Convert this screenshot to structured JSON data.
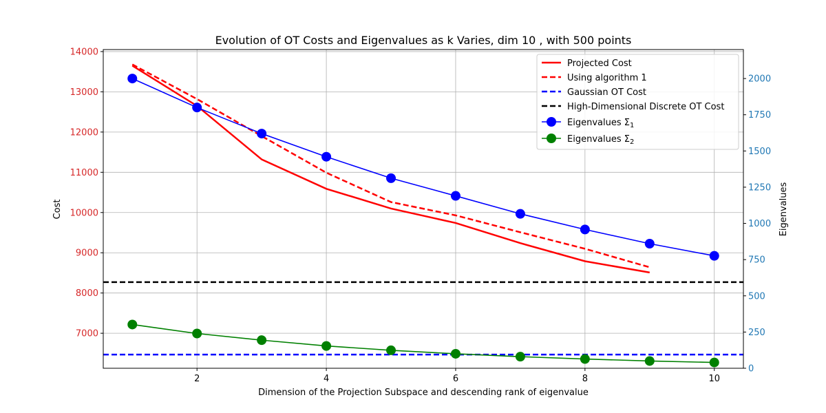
{
  "chart_data": {
    "type": "line",
    "title": "Evolution of OT Costs and Eigenvalues as k Varies, dim 10 , with 500 points",
    "xlabel": "Dimension of the Projection Subspace and descending rank of eigenvalue",
    "ylabel_left": "Cost",
    "ylabel_right": "Eigenvalues",
    "xlim": [
      0.55,
      10.45
    ],
    "ylim_left": [
      6130,
      14050
    ],
    "ylim_right": [
      0,
      2200
    ],
    "xticks": [
      2,
      4,
      6,
      8,
      10
    ],
    "yticks_left": [
      7000,
      8000,
      9000,
      10000,
      11000,
      12000,
      13000,
      14000
    ],
    "yticks_right": [
      0,
      250,
      500,
      750,
      1000,
      1250,
      1500,
      1750,
      2000
    ],
    "grid": true,
    "legend_position": "top-right",
    "left_axis_color": "#d62728",
    "right_axis_color": "#1f77b4",
    "series": [
      {
        "name": "Projected Cost",
        "axis": "left",
        "color": "#ff0000",
        "style": "solid",
        "marker": "none",
        "x": [
          1,
          2,
          3,
          4,
          5,
          6,
          7,
          8,
          9
        ],
        "y": [
          13650,
          12650,
          11320,
          10590,
          10100,
          9740,
          9240,
          8790,
          8510
        ]
      },
      {
        "name": "Using algorithm 1",
        "axis": "left",
        "color": "#ff0000",
        "style": "dashed",
        "marker": "none",
        "x": [
          1,
          2,
          3,
          4,
          5,
          6,
          7,
          8,
          9
        ],
        "y": [
          13680,
          12820,
          11900,
          10990,
          10260,
          9930,
          9510,
          9100,
          8640
        ]
      },
      {
        "name": "Gaussian OT Cost",
        "axis": "left",
        "color": "#0000ff",
        "style": "dashed",
        "marker": "none",
        "x": [
          0.55,
          10.45
        ],
        "y": [
          6470,
          6470
        ]
      },
      {
        "name": "High-Dimensional Discrete OT Cost",
        "axis": "left",
        "color": "#000000",
        "style": "dashed",
        "marker": "none",
        "x": [
          0.55,
          10.45
        ],
        "y": [
          8270,
          8270
        ]
      },
      {
        "name": "Eigenvalues Σ₁",
        "axis": "right",
        "color": "#0000ff",
        "style": "solid",
        "marker": "circle",
        "x": [
          1,
          2,
          3,
          4,
          5,
          6,
          7,
          8,
          9,
          10
        ],
        "y": [
          2000,
          1800,
          1620,
          1460,
          1312,
          1190,
          1066,
          958,
          860,
          776
        ]
      },
      {
        "name": "Eigenvalues Σ₂",
        "axis": "right",
        "color": "#008000",
        "style": "solid",
        "marker": "circle",
        "x": [
          1,
          2,
          3,
          4,
          5,
          6,
          7,
          8,
          9,
          10
        ],
        "y": [
          302,
          240,
          194,
          154,
          124,
          100,
          80,
          64,
          50,
          40
        ]
      }
    ]
  }
}
